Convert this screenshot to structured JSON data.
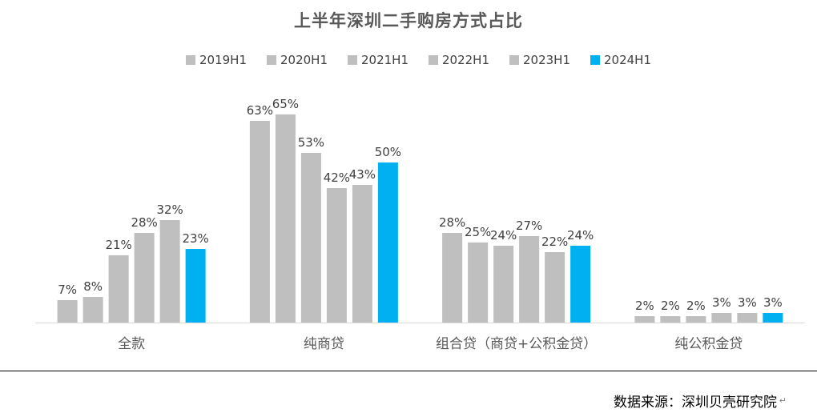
{
  "chart_data": {
    "type": "bar",
    "title": "上半年深圳二手购房方式占比",
    "categories": [
      "全款",
      "纯商贷",
      "组合贷（商贷+公积金贷）",
      "纯公积金贷"
    ],
    "series": [
      {
        "name": "2019H1",
        "values": [
          7,
          63,
          28,
          2
        ],
        "labels": [
          "7%",
          "63%",
          "28%",
          "2%"
        ],
        "color": "#BFBFBF"
      },
      {
        "name": "2020H1",
        "values": [
          8,
          65,
          25,
          2
        ],
        "labels": [
          "8%",
          "65%",
          "25%",
          "2%"
        ],
        "color": "#BFBFBF"
      },
      {
        "name": "2021H1",
        "values": [
          21,
          53,
          24,
          2
        ],
        "labels": [
          "21%",
          "53%",
          "24%",
          "2%"
        ],
        "color": "#BFBFBF"
      },
      {
        "name": "2022H1",
        "values": [
          28,
          42,
          27,
          3
        ],
        "labels": [
          "28%",
          "42%",
          "27%",
          "3%"
        ],
        "color": "#BFBFBF"
      },
      {
        "name": "2023H1",
        "values": [
          32,
          43,
          22,
          3
        ],
        "labels": [
          "32%",
          "43%",
          "22%",
          "3%"
        ],
        "color": "#BFBFBF"
      },
      {
        "name": "2024H1",
        "values": [
          23,
          50,
          24,
          3
        ],
        "labels": [
          "23%",
          "50%",
          "24%",
          "3%"
        ],
        "color": "#00B0F0"
      }
    ],
    "xlabel": "",
    "ylabel": "",
    "ylim": [
      0,
      70
    ],
    "grid": false,
    "legend": "top"
  },
  "source_note": "数据来源：深圳贝壳研究院",
  "return_mark": "↵",
  "colors": {
    "highlight": "#00B0F0",
    "other_years": "#BFBFBF",
    "axis": "#D9D9D9",
    "label_text": "#404040"
  }
}
